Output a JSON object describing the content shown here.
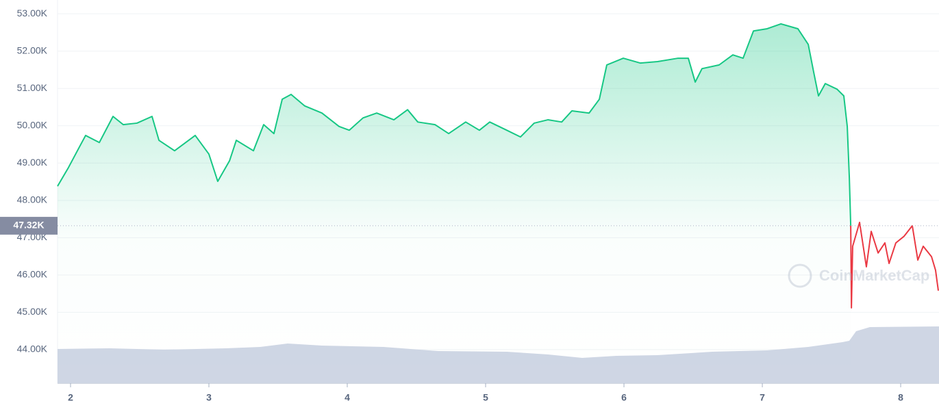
{
  "chart_data": {
    "type": "line",
    "xlim": [
      1.906,
      8.277
    ],
    "ylim": [
      43100,
      53370
    ],
    "xticks": [
      2,
      3,
      4,
      5,
      6,
      7,
      8
    ],
    "yticks": [
      {
        "value": 44000,
        "label": "44.00K"
      },
      {
        "value": 45000,
        "label": "45.00K"
      },
      {
        "value": 46000,
        "label": "46.00K"
      },
      {
        "value": 47000,
        "label": "47.00K"
      },
      {
        "value": 48000,
        "label": "48.00K"
      },
      {
        "value": 49000,
        "label": "49.00K"
      },
      {
        "value": 50000,
        "label": "50.00K"
      },
      {
        "value": 51000,
        "label": "51.00K"
      },
      {
        "value": 52000,
        "label": "52.00K"
      },
      {
        "value": 53000,
        "label": "53.00K"
      }
    ],
    "grid": true,
    "current_price": {
      "value": 47320,
      "label": "47.32K"
    },
    "watermark": "CoinMarketCap",
    "series": [
      {
        "color": "#16c784",
        "x": [
          1.906,
          1.985,
          2.064,
          2.109,
          2.208,
          2.307,
          2.381,
          2.48,
          2.589,
          2.639,
          2.752,
          2.901,
          3.0,
          3.064,
          3.149,
          3.198,
          3.322,
          3.396,
          3.47,
          3.53,
          3.594,
          3.693,
          3.817,
          3.941,
          4.015,
          4.114,
          4.213,
          4.337,
          4.436,
          4.51,
          4.634,
          4.733,
          4.856,
          4.955,
          5.03,
          5.153,
          5.252,
          5.351,
          5.45,
          5.55,
          5.624,
          5.748,
          5.822,
          5.876,
          5.995,
          6.119,
          6.243,
          6.391,
          6.465,
          6.515,
          6.564,
          6.688,
          6.787,
          6.861,
          6.936,
          7.035,
          7.134,
          7.257,
          7.332,
          7.371,
          7.406,
          7.455,
          7.54,
          7.589,
          7.614,
          7.629,
          7.639
        ],
        "values": [
          48380,
          48880,
          49430,
          49740,
          49550,
          50250,
          50030,
          50070,
          50250,
          49610,
          49330,
          49740,
          49240,
          48510,
          49060,
          49610,
          49330,
          50030,
          49790,
          50710,
          50840,
          50530,
          50340,
          49980,
          49880,
          50210,
          50340,
          50160,
          50430,
          50100,
          50030,
          49790,
          50100,
          49880,
          50100,
          49880,
          49700,
          50070,
          50160,
          50100,
          50400,
          50340,
          50710,
          51630,
          51810,
          51680,
          51720,
          51810,
          51810,
          51170,
          51530,
          51630,
          51900,
          51810,
          52540,
          52600,
          52730,
          52600,
          52180,
          51440,
          50800,
          51130,
          50980,
          50800,
          49980,
          48600,
          47320
        ]
      },
      {
        "color": "#ea3943",
        "x": [
          7.639,
          7.644,
          7.653,
          7.703,
          7.752,
          7.787,
          7.837,
          7.886,
          7.916,
          7.965,
          8.025,
          8.084,
          8.124,
          8.163,
          8.223,
          8.252,
          8.272
        ],
        "values": [
          47320,
          45120,
          46770,
          47410,
          46220,
          47170,
          46590,
          46860,
          46310,
          46860,
          47040,
          47320,
          46400,
          46770,
          46490,
          46130,
          45580
        ]
      }
    ]
  }
}
